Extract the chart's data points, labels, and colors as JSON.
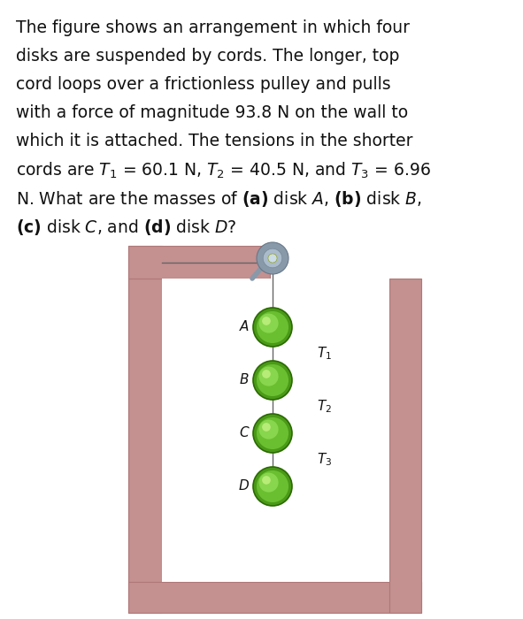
{
  "background_color": "#ffffff",
  "wall_color": "#c49090",
  "wall_edge_color": "#b07878",
  "disk_color_dark": "#4a9a18",
  "disk_color_mid": "#6abf30",
  "disk_color_light": "#90dd55",
  "disk_color_shine": "#c0f080",
  "cord_color": "#666666",
  "pulley_color_outer": "#8899aa",
  "pulley_color_mid": "#aabbcc",
  "pulley_color_inner": "#ccdde8",
  "pulley_bracket_color": "#8899aa",
  "text_lines": [
    "The figure shows an arrangement in which four",
    "disks are suspended by cords. The longer, top",
    "cord loops over a frictionless pulley and pulls",
    "with a force of magnitude 93.8 N on the wall to",
    "which it is attached. The tensions in the shorter",
    "cords are $T_1$ = 60.1 N, $T_2$ = 40.5 N, and $T_3$ = 6.96",
    "N. What are the masses of $\\mathbf{(a)}$ disk $A$, $\\mathbf{(b)}$ disk $B$,",
    "$\\mathbf{(c)}$ disk $C$, and $\\mathbf{(d)}$ disk $D$?"
  ],
  "disk_labels": [
    "A",
    "B",
    "C",
    "D"
  ],
  "text_fontsize": 13.5,
  "label_fontsize": 11,
  "tension_fontsize": 11
}
